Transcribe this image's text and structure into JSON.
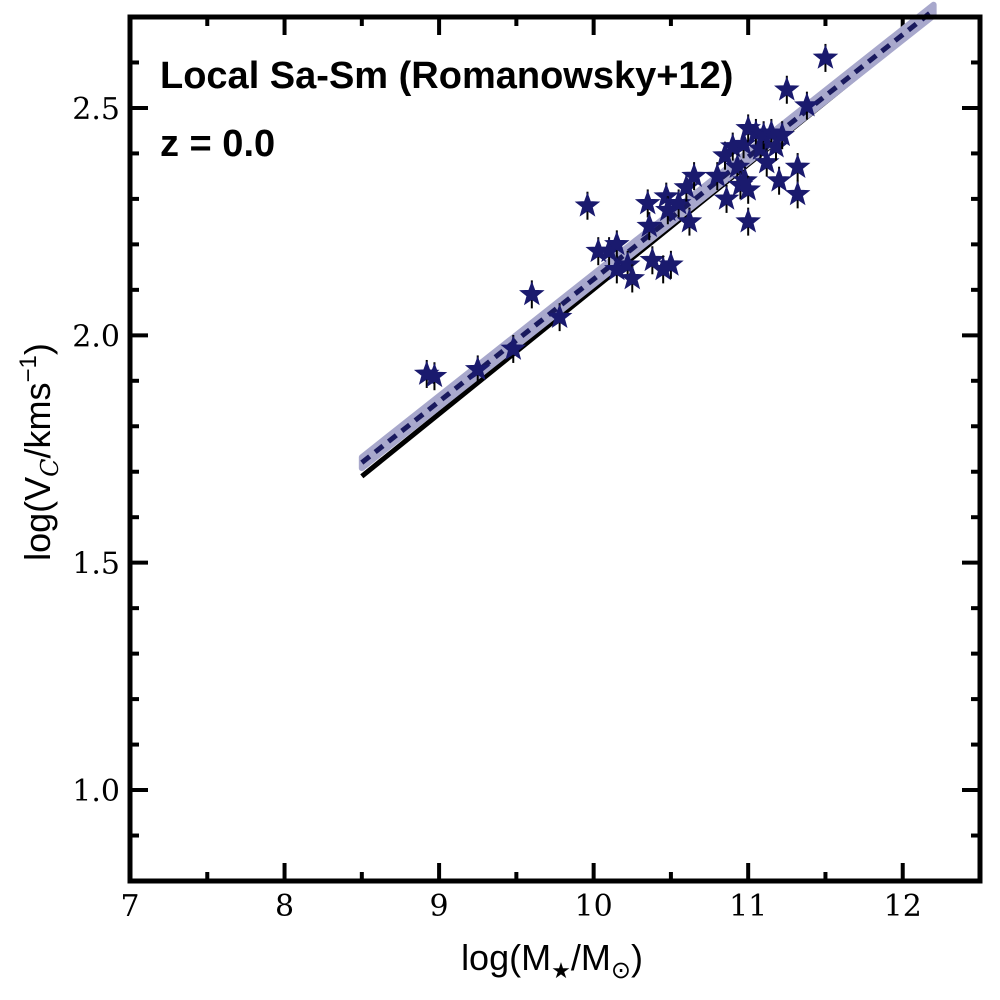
{
  "chart_data": {
    "type": "scatter",
    "title": "Local Sa-Sm (Romanowsky+12)",
    "subtitle": "z = 0.0",
    "xlabel": {
      "base": "log(M",
      "sub1": "★",
      "mid": "/M",
      "sub2": "⊙",
      "end": ")"
    },
    "ylabel": {
      "base": "log(V",
      "sub": "C",
      "mid": "/kms",
      "sup": "−1",
      "end": ")"
    },
    "xlim": [
      7,
      12.5
    ],
    "ylim": [
      0.8,
      2.7
    ],
    "x_ticks": [
      "7",
      "8",
      "9",
      "10",
      "11",
      "12"
    ],
    "y_ticks": [
      "1.0",
      "1.5",
      "2.0",
      "2.5"
    ],
    "x_tick_values": [
      7,
      8,
      9,
      10,
      11,
      12
    ],
    "y_tick_values": [
      1.0,
      1.5,
      2.0,
      2.5
    ],
    "colors": {
      "points": "#1a1a6e",
      "fit_dashed": "#1a1a5e",
      "fit_band": "#a8a8cc",
      "reference_line": "#000000",
      "axes": "#000000"
    },
    "fits": [
      {
        "name": "reference",
        "style": "solid",
        "x": [
          8.5,
          12.2
        ],
        "y": [
          1.69,
          2.705
        ]
      },
      {
        "name": "data-fit",
        "style": "dashed",
        "x": [
          8.5,
          12.2
        ],
        "y": [
          1.72,
          2.715
        ],
        "band": 0.012
      }
    ],
    "points": [
      {
        "x": 8.92,
        "y": 1.915
      },
      {
        "x": 8.97,
        "y": 1.91
      },
      {
        "x": 9.25,
        "y": 1.925
      },
      {
        "x": 9.48,
        "y": 1.97
      },
      {
        "x": 9.6,
        "y": 2.09
      },
      {
        "x": 9.78,
        "y": 2.04
      },
      {
        "x": 9.96,
        "y": 2.285
      },
      {
        "x": 10.03,
        "y": 2.185
      },
      {
        "x": 10.1,
        "y": 2.185
      },
      {
        "x": 10.15,
        "y": 2.2
      },
      {
        "x": 10.15,
        "y": 2.145
      },
      {
        "x": 10.22,
        "y": 2.155
      },
      {
        "x": 10.25,
        "y": 2.125
      },
      {
        "x": 10.35,
        "y": 2.29
      },
      {
        "x": 10.36,
        "y": 2.24
      },
      {
        "x": 10.38,
        "y": 2.165
      },
      {
        "x": 10.45,
        "y": 2.145
      },
      {
        "x": 10.47,
        "y": 2.305
      },
      {
        "x": 10.48,
        "y": 2.275
      },
      {
        "x": 10.5,
        "y": 2.155
      },
      {
        "x": 10.55,
        "y": 2.29
      },
      {
        "x": 10.6,
        "y": 2.325
      },
      {
        "x": 10.62,
        "y": 2.25
      },
      {
        "x": 10.65,
        "y": 2.35
      },
      {
        "x": 10.8,
        "y": 2.35
      },
      {
        "x": 10.85,
        "y": 2.395
      },
      {
        "x": 10.86,
        "y": 2.3
      },
      {
        "x": 10.9,
        "y": 2.415
      },
      {
        "x": 10.93,
        "y": 2.37
      },
      {
        "x": 10.95,
        "y": 2.33
      },
      {
        "x": 10.97,
        "y": 2.42
      },
      {
        "x": 10.98,
        "y": 2.34
      },
      {
        "x": 11.0,
        "y": 2.455
      },
      {
        "x": 11.0,
        "y": 2.32
      },
      {
        "x": 11.0,
        "y": 2.25
      },
      {
        "x": 11.05,
        "y": 2.445
      },
      {
        "x": 11.08,
        "y": 2.41
      },
      {
        "x": 11.1,
        "y": 2.44
      },
      {
        "x": 11.12,
        "y": 2.38
      },
      {
        "x": 11.15,
        "y": 2.445
      },
      {
        "x": 11.18,
        "y": 2.415
      },
      {
        "x": 11.2,
        "y": 2.34
      },
      {
        "x": 11.22,
        "y": 2.44
      },
      {
        "x": 11.25,
        "y": 2.54
      },
      {
        "x": 11.32,
        "y": 2.37
      },
      {
        "x": 11.32,
        "y": 2.31
      },
      {
        "x": 11.38,
        "y": 2.505
      },
      {
        "x": 11.5,
        "y": 2.61
      }
    ]
  }
}
